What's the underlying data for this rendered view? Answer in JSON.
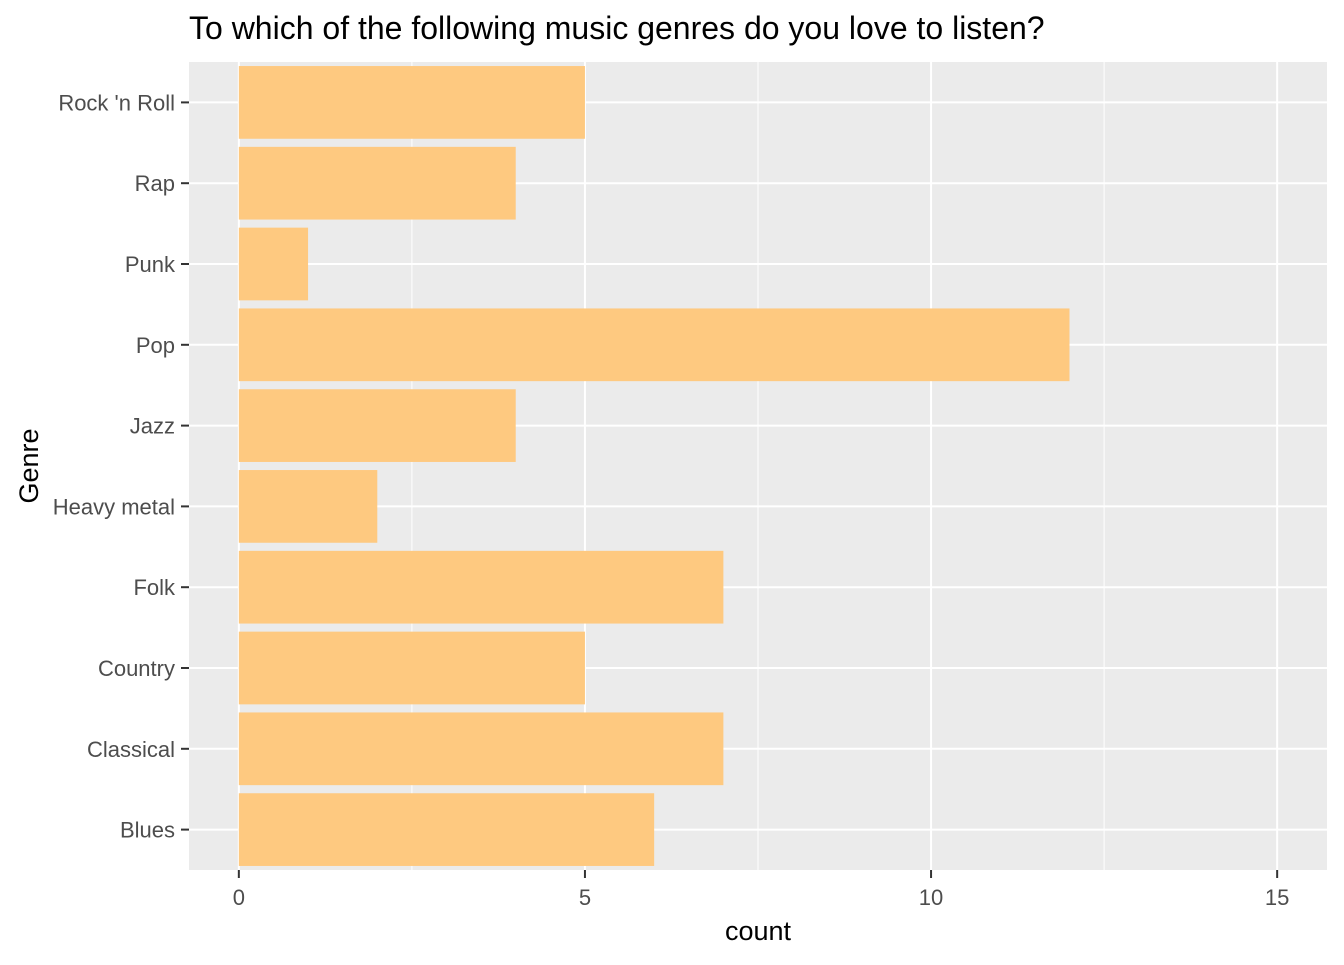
{
  "chart_data": {
    "type": "bar",
    "orientation": "horizontal",
    "title": "To which of the following music genres do you love to listen?",
    "xlabel": "count",
    "ylabel": "Genre",
    "categories": [
      "Rock 'n Roll",
      "Rap",
      "Punk",
      "Pop",
      "Jazz",
      "Heavy metal",
      "Folk",
      "Country",
      "Classical",
      "Blues"
    ],
    "values": [
      5,
      4,
      1,
      12,
      4,
      2,
      7,
      5,
      7,
      6
    ],
    "xlim": [
      -0.72,
      15.72
    ],
    "x_ticks": [
      0,
      5,
      10,
      15
    ],
    "x_tick_labels": [
      "0",
      "5",
      "10",
      "15"
    ],
    "grid": true,
    "colors": {
      "bar": "#FEC980",
      "panel_background": "#EBEBEB",
      "grid": "#FFFFFF",
      "tick_label": "#4D4D4D",
      "tick_mark": "#333333",
      "text": "#000000"
    }
  }
}
